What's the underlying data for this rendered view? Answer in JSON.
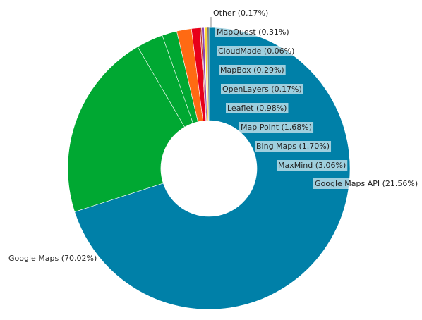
{
  "chart_data": {
    "type": "pie",
    "donut": true,
    "categories": [
      "Google Maps",
      "Google Maps API",
      "MaxMind",
      "Bing Maps",
      "Map Point",
      "Leaflet",
      "OpenLayers",
      "MapBox",
      "CloudMade",
      "MapQuest",
      "Other"
    ],
    "values": [
      70.02,
      21.56,
      3.06,
      1.7,
      1.68,
      0.98,
      0.17,
      0.29,
      0.06,
      0.31,
      0.17
    ],
    "labels": [
      "Google Maps (70.02%)",
      "Google Maps API (21.56%)",
      "MaxMind (3.06%)",
      "Bing Maps (1.70%)",
      "Map Point (1.68%)",
      "Leaflet (0.98%)",
      "OpenLayers (0.17%)",
      "MapBox (0.29%)",
      "CloudMade (0.06%)",
      "MapQuest (0.31%)",
      "Other (0.17%)"
    ],
    "colors": [
      "#0080a8",
      "#00a832",
      "#00a832",
      "#00a832",
      "#ff6a13",
      "#e8001a",
      "#c0392b",
      "#8e44ad",
      "#e84393",
      "#fdd835",
      "#555555"
    ],
    "legend": "none"
  }
}
